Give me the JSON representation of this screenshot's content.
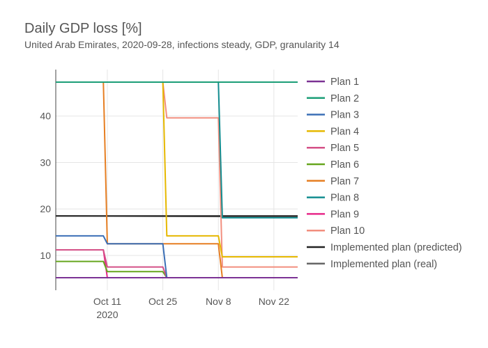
{
  "chart_data": {
    "type": "line",
    "title": "Daily GDP loss [%]",
    "subtitle": "United Arab Emirates, 2020-09-28, infections steady, GDP, granularity 14",
    "xlabel": "",
    "ylabel": "",
    "xlim": [
      "2020-09-28",
      "2020-11-28"
    ],
    "ylim": [
      2.5,
      50
    ],
    "x_ticks": [
      {
        "x": "2020-10-11",
        "label": "Oct 11",
        "sublabel": "2020"
      },
      {
        "x": "2020-10-25",
        "label": "Oct 25",
        "sublabel": ""
      },
      {
        "x": "2020-11-08",
        "label": "Nov 8",
        "sublabel": ""
      },
      {
        "x": "2020-11-22",
        "label": "Nov 22",
        "sublabel": ""
      }
    ],
    "y_ticks": [
      10,
      20,
      30,
      40
    ],
    "grid": true,
    "legend_position": "right",
    "series": [
      {
        "name": "Plan 1",
        "color": "#7b3294",
        "points": [
          [
            "2020-09-28",
            5.2
          ],
          [
            "2020-11-28",
            5.2
          ]
        ]
      },
      {
        "name": "Plan 2",
        "color": "#1b9e77",
        "points": [
          [
            "2020-09-28",
            47.3
          ],
          [
            "2020-11-28",
            47.3
          ]
        ]
      },
      {
        "name": "Plan 3",
        "color": "#3b6fb6",
        "points": [
          [
            "2020-09-28",
            14.2
          ],
          [
            "2020-10-10",
            14.2
          ],
          [
            "2020-10-11",
            12.5
          ],
          [
            "2020-10-25",
            12.5
          ],
          [
            "2020-10-26",
            5.2
          ],
          [
            "2020-11-28",
            5.2
          ]
        ]
      },
      {
        "name": "Plan 4",
        "color": "#e6b800",
        "points": [
          [
            "2020-09-28",
            47.3
          ],
          [
            "2020-10-25",
            47.3
          ],
          [
            "2020-10-26",
            14.2
          ],
          [
            "2020-11-08",
            14.2
          ],
          [
            "2020-11-09",
            9.7
          ],
          [
            "2020-11-28",
            9.7
          ]
        ]
      },
      {
        "name": "Plan 5",
        "color": "#d45087",
        "points": [
          [
            "2020-09-28",
            11.2
          ],
          [
            "2020-10-10",
            11.2
          ],
          [
            "2020-10-11",
            7.5
          ],
          [
            "2020-10-25",
            7.5
          ],
          [
            "2020-10-26",
            5.2
          ],
          [
            "2020-11-28",
            5.2
          ]
        ]
      },
      {
        "name": "Plan 6",
        "color": "#66a61e",
        "points": [
          [
            "2020-09-28",
            8.7
          ],
          [
            "2020-10-10",
            8.7
          ],
          [
            "2020-10-11",
            6.5
          ],
          [
            "2020-10-25",
            6.5
          ],
          [
            "2020-10-26",
            5.2
          ],
          [
            "2020-11-28",
            5.2
          ]
        ]
      },
      {
        "name": "Plan 7",
        "color": "#e67e22",
        "points": [
          [
            "2020-09-28",
            47.3
          ],
          [
            "2020-10-10",
            47.3
          ],
          [
            "2020-10-11",
            12.5
          ],
          [
            "2020-11-08",
            12.5
          ],
          [
            "2020-11-09",
            5.2
          ],
          [
            "2020-11-28",
            5.2
          ]
        ]
      },
      {
        "name": "Plan 8",
        "color": "#138d90",
        "points": [
          [
            "2020-09-28",
            47.3
          ],
          [
            "2020-11-08",
            47.3
          ],
          [
            "2020-11-09",
            18.1
          ],
          [
            "2020-11-28",
            18.1
          ]
        ]
      },
      {
        "name": "Plan 9",
        "color": "#e7298a",
        "points": [
          [
            "2020-09-28",
            11.2
          ],
          [
            "2020-10-10",
            11.2
          ],
          [
            "2020-10-11",
            5.2
          ],
          [
            "2020-11-28",
            5.2
          ]
        ]
      },
      {
        "name": "Plan 10",
        "color": "#f28e7e",
        "points": [
          [
            "2020-09-28",
            47.3
          ],
          [
            "2020-10-25",
            47.3
          ],
          [
            "2020-10-26",
            39.6
          ],
          [
            "2020-11-08",
            39.6
          ],
          [
            "2020-11-09",
            7.5
          ],
          [
            "2020-11-28",
            7.5
          ]
        ]
      },
      {
        "name": "Implemented plan (predicted)",
        "color": "#222222",
        "points": [
          [
            "2020-09-28",
            18.5
          ],
          [
            "2020-11-28",
            18.5
          ]
        ]
      },
      {
        "name": "Implemented plan (real)",
        "color": "#666666",
        "points": [
          [
            "2020-09-28",
            18.5
          ],
          [
            "2020-11-28",
            18.3
          ]
        ]
      }
    ]
  }
}
